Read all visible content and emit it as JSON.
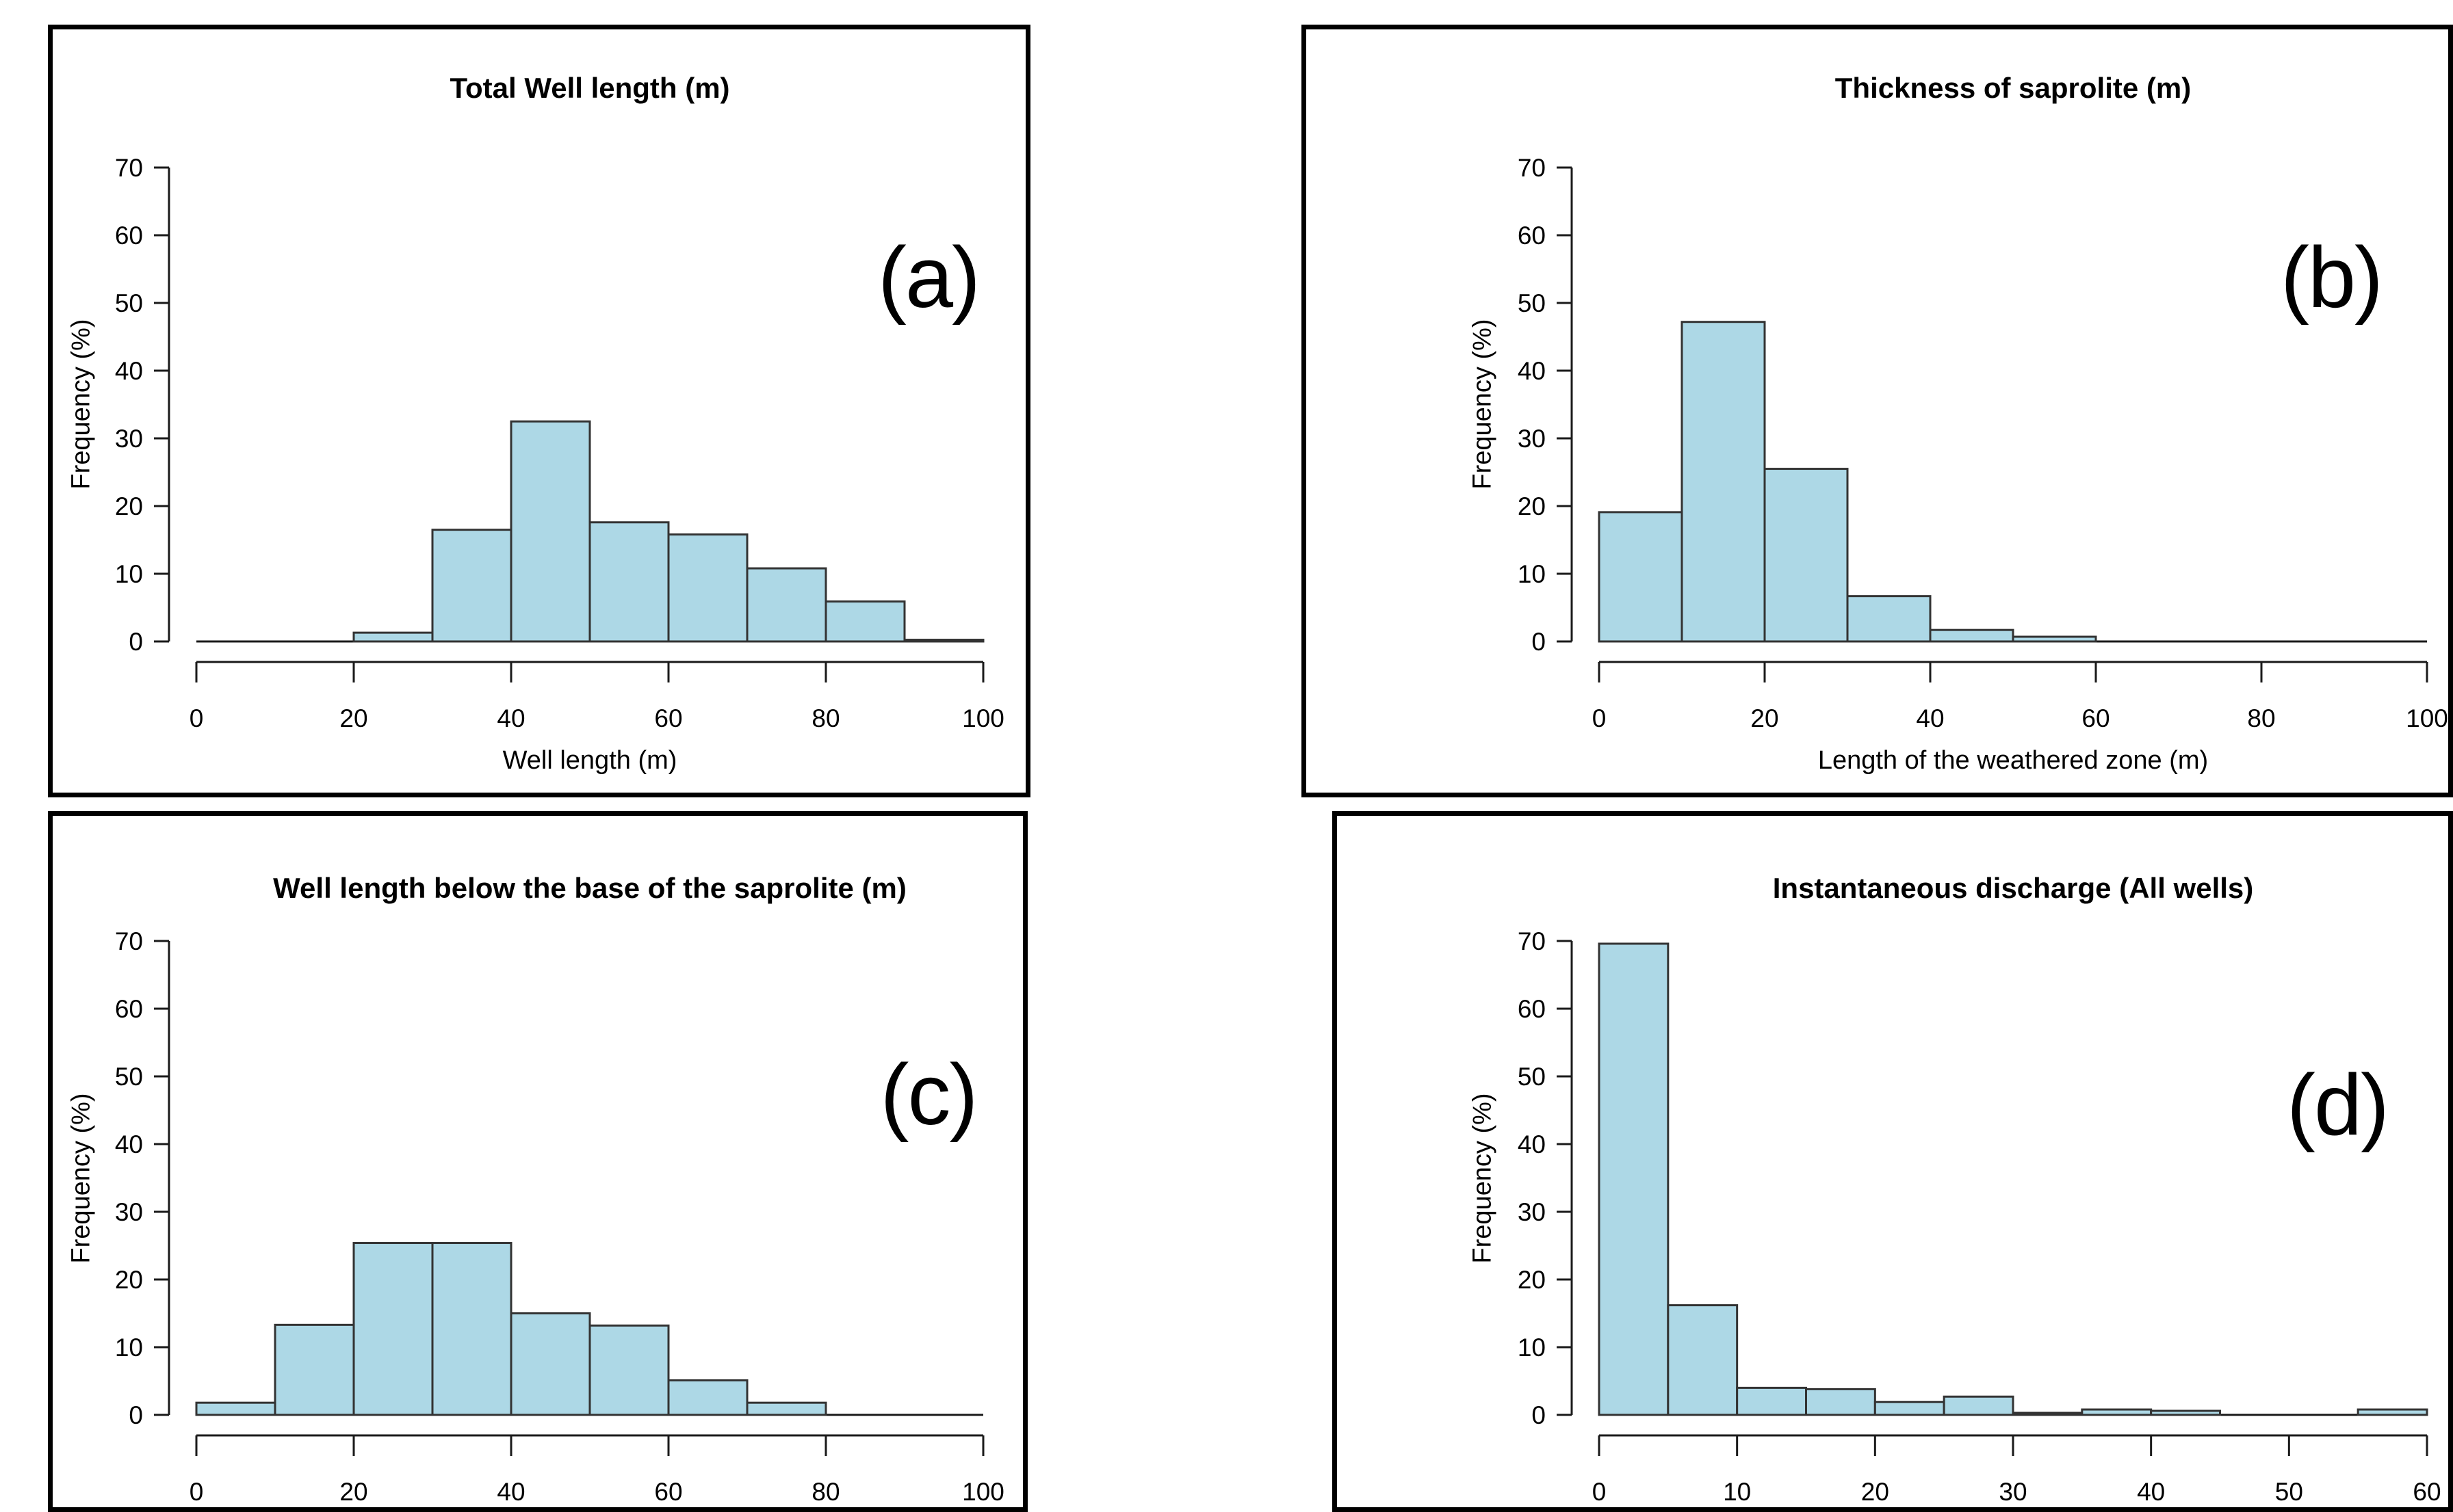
{
  "figure": {
    "background": "#ffffff",
    "panel_border_color": "#000000",
    "bar_fill": "#ADD8E6",
    "bar_stroke": "#333333",
    "axis_color": "#1a1a1a",
    "text_color": "#000000"
  },
  "chart_data": [
    {
      "id": "a",
      "type": "bar",
      "panel_label": "(a)",
      "title": "Total Well length (m)",
      "xlabel": "Well length (m)",
      "ylabel": "Frequency (%)",
      "xlim": [
        0,
        100
      ],
      "ylim": [
        0,
        70
      ],
      "x_ticks": [
        0,
        20,
        40,
        60,
        80,
        100
      ],
      "y_ticks": [
        0,
        10,
        20,
        30,
        40,
        50,
        60,
        70
      ],
      "grid": false,
      "legend": null,
      "bin_edges": [
        0,
        10,
        20,
        30,
        40,
        50,
        60,
        70,
        80,
        90,
        100
      ],
      "values": [
        0,
        0,
        1.3,
        16.5,
        32.5,
        17.6,
        15.8,
        10.8,
        5.9,
        0.25
      ]
    },
    {
      "id": "b",
      "type": "bar",
      "panel_label": "(b)",
      "title": "Thickness of saprolite (m)",
      "xlabel": "Length of the weathered zone (m)",
      "ylabel": "Frequency (%)",
      "xlim": [
        0,
        100
      ],
      "ylim": [
        0,
        70
      ],
      "x_ticks": [
        0,
        20,
        40,
        60,
        80,
        100
      ],
      "y_ticks": [
        0,
        10,
        20,
        30,
        40,
        50,
        60,
        70
      ],
      "grid": false,
      "legend": null,
      "bin_edges": [
        0,
        10,
        20,
        30,
        40,
        50,
        60,
        70,
        80,
        90,
        100
      ],
      "values": [
        19.1,
        47.2,
        25.5,
        6.7,
        1.7,
        0.7,
        0,
        0,
        0,
        0
      ]
    },
    {
      "id": "c",
      "type": "bar",
      "panel_label": "(c)",
      "title": "Well length below the base of the saprolite (m)",
      "xlabel": "",
      "ylabel": "Frequency (%)",
      "xlim": [
        0,
        100
      ],
      "ylim": [
        0,
        70
      ],
      "x_ticks": [
        0,
        20,
        40,
        60,
        80,
        100
      ],
      "y_ticks": [
        0,
        10,
        20,
        30,
        40,
        50,
        60,
        70
      ],
      "grid": false,
      "legend": null,
      "bin_edges": [
        0,
        10,
        20,
        30,
        40,
        50,
        60,
        70,
        80,
        90,
        100
      ],
      "values": [
        1.8,
        13.3,
        25.4,
        25.4,
        15.0,
        13.2,
        5.1,
        1.8,
        0,
        0
      ]
    },
    {
      "id": "d",
      "type": "bar",
      "panel_label": "(d)",
      "title": "Instantaneous discharge (All wells)",
      "xlabel": "",
      "ylabel": "Frequency (%)",
      "xlim": [
        0,
        60
      ],
      "ylim": [
        0,
        70
      ],
      "x_ticks": [
        0,
        10,
        20,
        30,
        40,
        50,
        60
      ],
      "y_ticks": [
        0,
        10,
        20,
        30,
        40,
        50,
        60,
        70
      ],
      "grid": false,
      "legend": null,
      "bin_edges": [
        0,
        5,
        10,
        15,
        20,
        25,
        30,
        35,
        40,
        45,
        50,
        55,
        60
      ],
      "values": [
        69.6,
        16.2,
        4.0,
        3.8,
        1.9,
        2.7,
        0.3,
        0.8,
        0.6,
        0,
        0,
        0.8
      ]
    }
  ]
}
